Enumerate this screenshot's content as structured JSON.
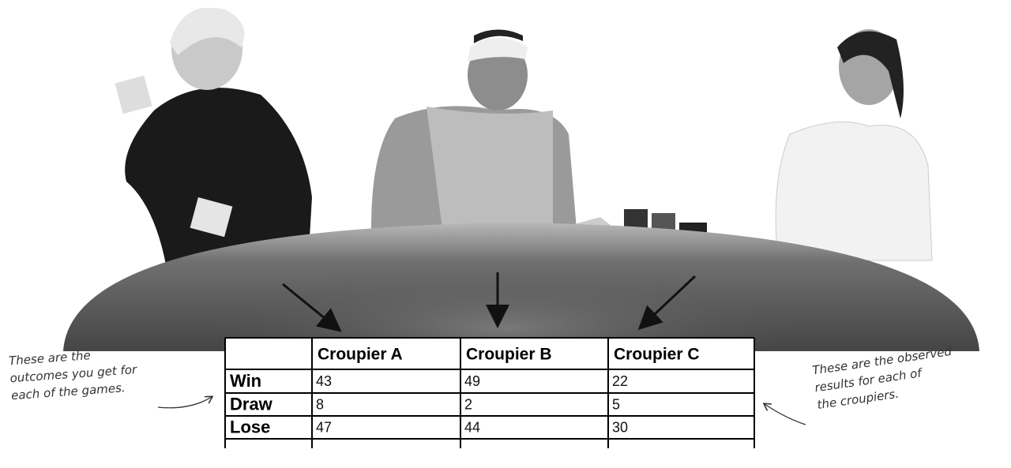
{
  "table": {
    "header": [
      "Croupier A",
      "Croupier B",
      "Croupier C"
    ],
    "rows": [
      {
        "label": "Win",
        "values": [
          43,
          49,
          22
        ]
      },
      {
        "label": "Draw",
        "values": [
          8,
          2,
          5
        ]
      },
      {
        "label": "Lose",
        "values": [
          47,
          44,
          30
        ]
      }
    ]
  },
  "annotations": {
    "left": [
      "These are the",
      "outcomes you get for",
      "each of the games."
    ],
    "right": [
      "These are the observed",
      "results for each of",
      "the croupiers."
    ]
  }
}
